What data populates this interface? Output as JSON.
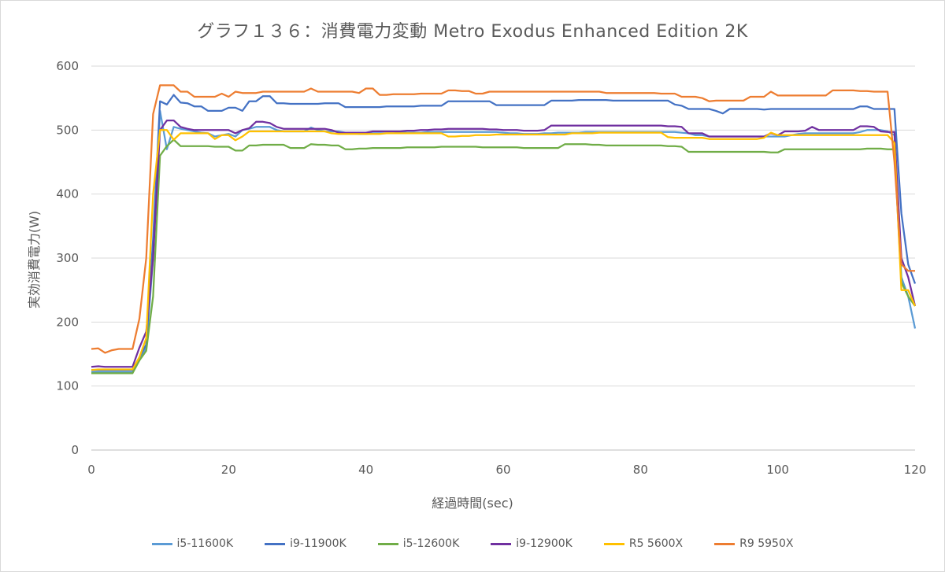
{
  "chart_data": {
    "type": "line",
    "title": "グラフ１３６：消費電力変動 Metro Exodus Enhanced Edition 2K",
    "xlabel": "経過時間(sec)",
    "ylabel": "実効消費電力(W)",
    "xlim": [
      0,
      120
    ],
    "ylim": [
      0,
      600
    ],
    "xticks": [
      0,
      20,
      40,
      60,
      80,
      100,
      120
    ],
    "yticks": [
      0,
      100,
      200,
      300,
      400,
      500,
      600
    ],
    "grid": "horizontal",
    "legend_position": "bottom",
    "x": [
      0,
      1,
      2,
      3,
      4,
      5,
      6,
      7,
      8,
      9,
      10,
      11,
      12,
      13,
      14,
      15,
      16,
      17,
      18,
      19,
      20,
      21,
      22,
      23,
      24,
      25,
      26,
      27,
      28,
      29,
      30,
      31,
      32,
      33,
      34,
      35,
      36,
      37,
      38,
      39,
      40,
      41,
      42,
      43,
      44,
      45,
      46,
      47,
      48,
      49,
      50,
      51,
      52,
      53,
      54,
      55,
      56,
      57,
      58,
      59,
      60,
      61,
      62,
      63,
      64,
      65,
      66,
      67,
      68,
      69,
      70,
      71,
      72,
      73,
      74,
      75,
      76,
      77,
      78,
      79,
      80,
      81,
      82,
      83,
      84,
      85,
      86,
      87,
      88,
      89,
      90,
      91,
      92,
      93,
      94,
      95,
      96,
      97,
      98,
      99,
      100,
      101,
      102,
      103,
      104,
      105,
      106,
      107,
      108,
      109,
      110,
      111,
      112,
      113,
      114,
      115,
      116,
      117,
      118,
      119,
      120
    ],
    "series": [
      {
        "name": "i5-11600K",
        "color": "#5B9BD5",
        "values": [
          122,
          122,
          122,
          122,
          122,
          122,
          122,
          140,
          160,
          300,
          530,
          470,
          505,
          502,
          500,
          498,
          496,
          495,
          490,
          492,
          494,
          490,
          500,
          502,
          505,
          505,
          505,
          500,
          498,
          498,
          498,
          498,
          504,
          500,
          498,
          498,
          498,
          496,
          495,
          494,
          494,
          495,
          495,
          495,
          495,
          496,
          496,
          496,
          496,
          497,
          497,
          497,
          497,
          497,
          497,
          497,
          497,
          497,
          497,
          497,
          496,
          495,
          495,
          494,
          494,
          494,
          495,
          495,
          496,
          496,
          496,
          496,
          497,
          497,
          497,
          497,
          497,
          497,
          497,
          497,
          497,
          497,
          497,
          497,
          497,
          497,
          496,
          495,
          492,
          492,
          490,
          490,
          490,
          490,
          490,
          490,
          490,
          490,
          490,
          490,
          490,
          490,
          492,
          494,
          495,
          495,
          495,
          495,
          495,
          495,
          495,
          495,
          497,
          500,
          500,
          500,
          498,
          492,
          270,
          240,
          190
        ]
      },
      {
        "name": "i9-11900K",
        "color": "#4472C4",
        "values": [
          125,
          125,
          125,
          125,
          125,
          125,
          125,
          145,
          165,
          330,
          545,
          540,
          555,
          543,
          542,
          537,
          537,
          530,
          530,
          530,
          535,
          535,
          530,
          545,
          545,
          553,
          553,
          542,
          542,
          541,
          541,
          541,
          541,
          541,
          542,
          542,
          542,
          536,
          536,
          536,
          536,
          536,
          536,
          537,
          537,
          537,
          537,
          537,
          538,
          538,
          538,
          538,
          545,
          545,
          545,
          545,
          545,
          545,
          545,
          539,
          539,
          539,
          539,
          539,
          539,
          539,
          539,
          546,
          546,
          546,
          546,
          547,
          547,
          547,
          547,
          547,
          546,
          546,
          546,
          546,
          546,
          546,
          546,
          546,
          546,
          540,
          538,
          533,
          533,
          533,
          533,
          530,
          526,
          533,
          533,
          533,
          533,
          533,
          532,
          533,
          533,
          533,
          533,
          533,
          533,
          533,
          533,
          533,
          533,
          533,
          533,
          533,
          537,
          537,
          533,
          533,
          533,
          533,
          370,
          290,
          260
        ]
      },
      {
        "name": "i5-12600K",
        "color": "#70AD47",
        "values": [
          120,
          120,
          120,
          120,
          120,
          120,
          120,
          140,
          155,
          240,
          460,
          475,
          485,
          475,
          475,
          475,
          475,
          475,
          474,
          474,
          474,
          468,
          468,
          476,
          476,
          477,
          477,
          477,
          477,
          472,
          472,
          472,
          478,
          477,
          477,
          476,
          476,
          470,
          470,
          471,
          471,
          472,
          472,
          472,
          472,
          472,
          473,
          473,
          473,
          473,
          473,
          474,
          474,
          474,
          474,
          474,
          474,
          473,
          473,
          473,
          473,
          473,
          473,
          472,
          472,
          472,
          472,
          472,
          472,
          478,
          478,
          478,
          478,
          477,
          477,
          476,
          476,
          476,
          476,
          476,
          476,
          476,
          476,
          476,
          475,
          475,
          474,
          466,
          466,
          466,
          466,
          466,
          466,
          466,
          466,
          466,
          466,
          466,
          466,
          465,
          465,
          470,
          470,
          470,
          470,
          470,
          470,
          470,
          470,
          470,
          470,
          470,
          470,
          471,
          471,
          471,
          470,
          470,
          262,
          240,
          225
        ]
      },
      {
        "name": "i9-12900K",
        "color": "#7030A0",
        "values": [
          130,
          131,
          130,
          130,
          130,
          130,
          130,
          160,
          185,
          300,
          500,
          515,
          515,
          505,
          502,
          500,
          500,
          500,
          500,
          500,
          500,
          495,
          500,
          503,
          513,
          513,
          511,
          505,
          502,
          502,
          502,
          502,
          502,
          502,
          502,
          500,
          496,
          496,
          496,
          496,
          496,
          498,
          498,
          498,
          498,
          498,
          499,
          499,
          500,
          500,
          501,
          501,
          502,
          502,
          502,
          502,
          502,
          502,
          501,
          501,
          500,
          500,
          500,
          499,
          499,
          499,
          500,
          507,
          507,
          507,
          507,
          507,
          507,
          507,
          507,
          507,
          507,
          507,
          507,
          507,
          507,
          507,
          507,
          507,
          506,
          506,
          505,
          495,
          495,
          495,
          490,
          490,
          490,
          490,
          490,
          490,
          490,
          490,
          490,
          495,
          492,
          498,
          498,
          498,
          499,
          505,
          500,
          500,
          500,
          500,
          500,
          500,
          506,
          506,
          505,
          498,
          497,
          497,
          300,
          270,
          225
        ]
      },
      {
        "name": "R5 5600X",
        "color": "#FFC000",
        "values": [
          125,
          126,
          126,
          126,
          126,
          126,
          126,
          145,
          175,
          400,
          500,
          500,
          485,
          495,
          495,
          495,
          495,
          495,
          486,
          492,
          492,
          484,
          490,
          498,
          498,
          498,
          498,
          498,
          498,
          498,
          498,
          498,
          498,
          498,
          498,
          495,
          494,
          494,
          494,
          494,
          494,
          494,
          494,
          495,
          495,
          495,
          495,
          495,
          495,
          495,
          495,
          495,
          490,
          490,
          491,
          491,
          492,
          492,
          492,
          493,
          493,
          493,
          493,
          493,
          493,
          493,
          493,
          493,
          493,
          493,
          495,
          495,
          495,
          495,
          496,
          496,
          496,
          496,
          496,
          496,
          496,
          496,
          496,
          496,
          489,
          488,
          488,
          488,
          488,
          488,
          486,
          486,
          486,
          486,
          486,
          486,
          486,
          486,
          488,
          496,
          492,
          492,
          492,
          492,
          492,
          492,
          492,
          492,
          492,
          492,
          492,
          492,
          492,
          492,
          492,
          492,
          492,
          480,
          250,
          250,
          225
        ]
      },
      {
        "name": "R9 5950X",
        "color": "#ED7D31",
        "values": [
          158,
          159,
          152,
          156,
          158,
          158,
          158,
          205,
          300,
          525,
          570,
          570,
          570,
          560,
          560,
          552,
          552,
          552,
          552,
          557,
          552,
          560,
          558,
          558,
          558,
          560,
          560,
          560,
          560,
          560,
          560,
          560,
          565,
          560,
          560,
          560,
          560,
          560,
          560,
          558,
          565,
          565,
          555,
          555,
          556,
          556,
          556,
          556,
          557,
          557,
          557,
          557,
          562,
          562,
          561,
          561,
          557,
          557,
          560,
          560,
          560,
          560,
          560,
          560,
          560,
          560,
          560,
          560,
          560,
          560,
          560,
          560,
          560,
          560,
          560,
          558,
          558,
          558,
          558,
          558,
          558,
          558,
          558,
          557,
          557,
          557,
          552,
          552,
          552,
          550,
          545,
          546,
          546,
          546,
          546,
          546,
          552,
          552,
          552,
          560,
          554,
          554,
          554,
          554,
          554,
          554,
          554,
          554,
          562,
          562,
          562,
          562,
          561,
          561,
          560,
          560,
          560,
          450,
          290,
          280,
          280
        ]
      }
    ]
  }
}
